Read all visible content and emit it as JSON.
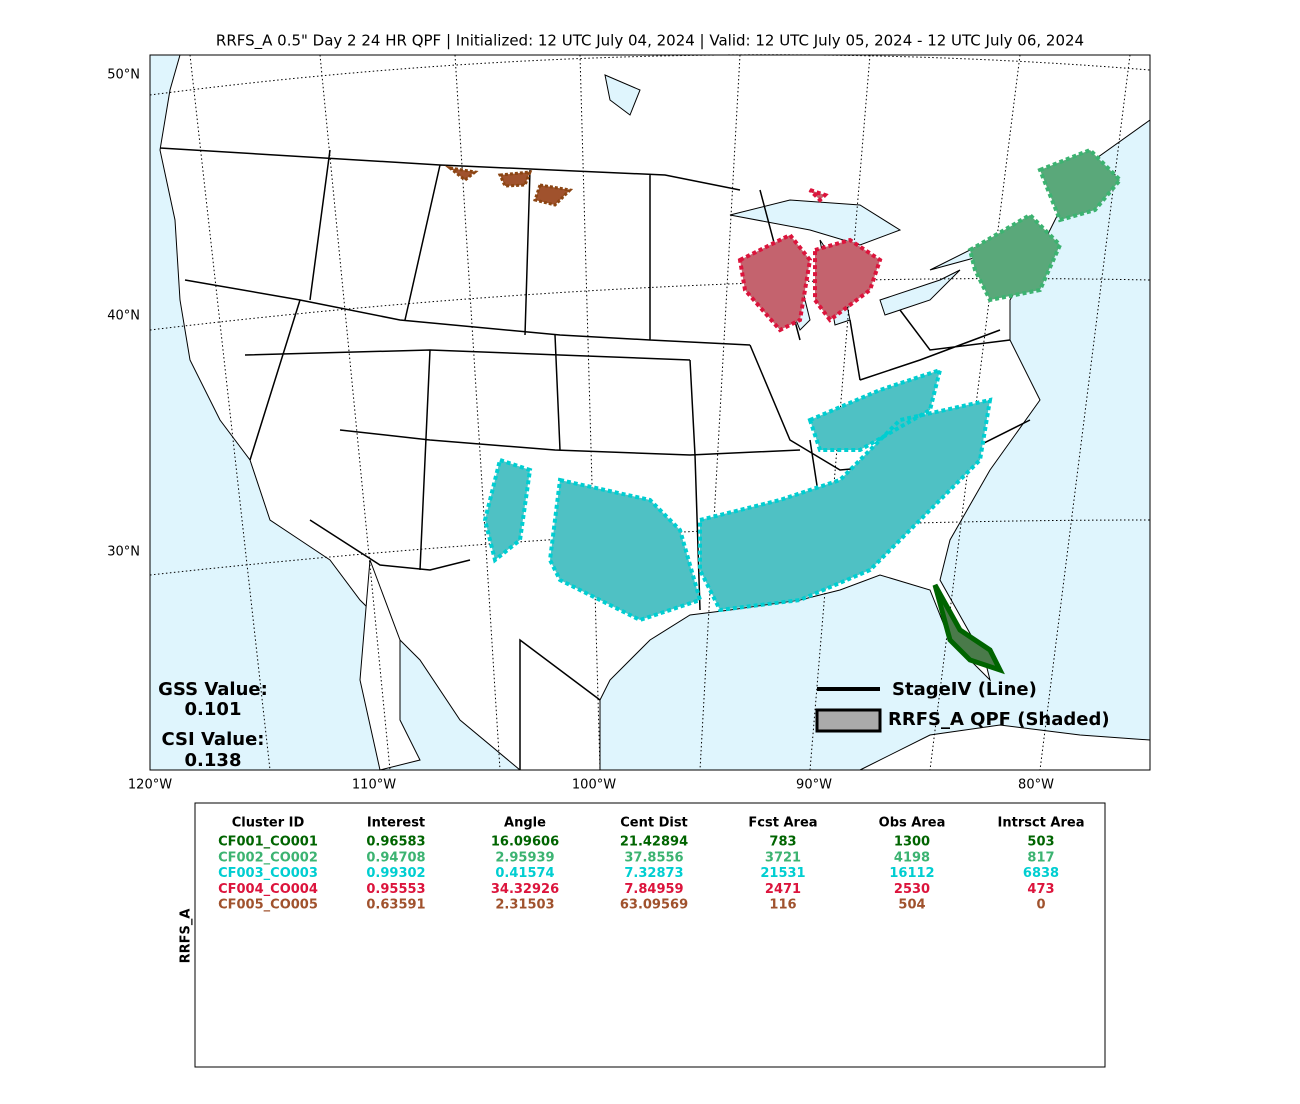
{
  "title": "RRFS_A 0.5\" Day 2 24 HR QPF | Initialized: 12 UTC July 04, 2024 | Valid: 12 UTC July 05, 2024 - 12 UTC July 06, 2024",
  "lat_labels": [
    "50°N",
    "40°N",
    "30°N"
  ],
  "lon_labels": [
    "120°W",
    "110°W",
    "100°W",
    "90°W",
    "80°W"
  ],
  "scores": {
    "gss_label": "GSS Value:",
    "gss_value": "0.101",
    "csi_label": "CSI Value:",
    "csi_value": "0.138"
  },
  "legend": {
    "line": "StageIV (Line)",
    "shaded": "RRFS_A QPF (Shaded)"
  },
  "table": {
    "side_label": "RRFS_A",
    "headers": [
      "Cluster ID",
      "Interest",
      "Angle",
      "Cent Dist",
      "Fcst Area",
      "Obs Area",
      "Intrsct Area"
    ],
    "row_colors": [
      "#006400",
      "#3cb371",
      "#00ced1",
      "#dc143c",
      "#a0522d"
    ],
    "rows": [
      [
        "CF001_CO001",
        "0.96583",
        "16.09606",
        "21.42894",
        "783",
        "1300",
        "503"
      ],
      [
        "CF002_CO002",
        "0.94708",
        "2.95939",
        "37.8556",
        "3721",
        "4198",
        "817"
      ],
      [
        "CF003_CO003",
        "0.99302",
        "0.41574",
        "7.32873",
        "21531",
        "16112",
        "6838"
      ],
      [
        "CF004_CO004",
        "0.95553",
        "34.32926",
        "7.84959",
        "2471",
        "2530",
        "473"
      ],
      [
        "CF005_CO005",
        "0.63591",
        "2.31503",
        "63.09569",
        "116",
        "504",
        "0"
      ]
    ]
  }
}
